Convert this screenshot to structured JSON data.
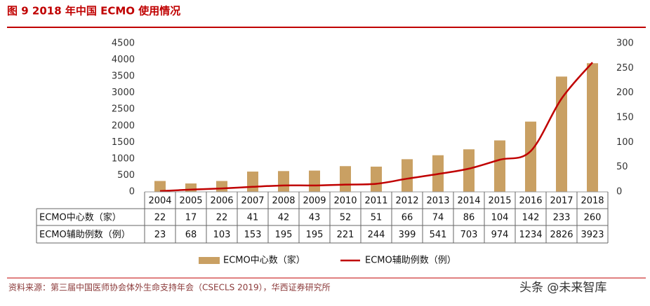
{
  "chart_data": {
    "type": "bar-line",
    "title": "图 9   2018 年中国 ECMO 使用情况",
    "source": "资料来源：第三届中国医师协会体外生命支持年会（CSECLS 2019），华西证券研究所",
    "watermark": "头条 @未来智库",
    "categories": [
      "2004",
      "2005",
      "2006",
      "2007",
      "2008",
      "2009",
      "2010",
      "2011",
      "2012",
      "2013",
      "2014",
      "2015",
      "2016",
      "2017",
      "2018"
    ],
    "series": [
      {
        "name": "ECMO中心数（家）",
        "type": "bar",
        "color": "#c9a063",
        "axis": "y2",
        "values": [
          22,
          17,
          22,
          41,
          42,
          43,
          52,
          51,
          66,
          74,
          86,
          104,
          142,
          233,
          260
        ]
      },
      {
        "name": "ECMO辅助例数（例）",
        "type": "line",
        "color": "#c00000",
        "axis": "y",
        "values": [
          23,
          68,
          103,
          153,
          195,
          195,
          221,
          244,
          399,
          541,
          703,
          974,
          1234,
          2826,
          3923
        ]
      }
    ],
    "ylim": [
      0,
      4500
    ],
    "yticks": [
      0,
      500,
      1000,
      1500,
      2000,
      2500,
      3000,
      3500,
      4000,
      4500
    ],
    "y2lim": [
      0,
      300
    ],
    "y2ticks": [
      0,
      50,
      100,
      150,
      200,
      250,
      300
    ],
    "grid": false,
    "legend": "bottom"
  }
}
